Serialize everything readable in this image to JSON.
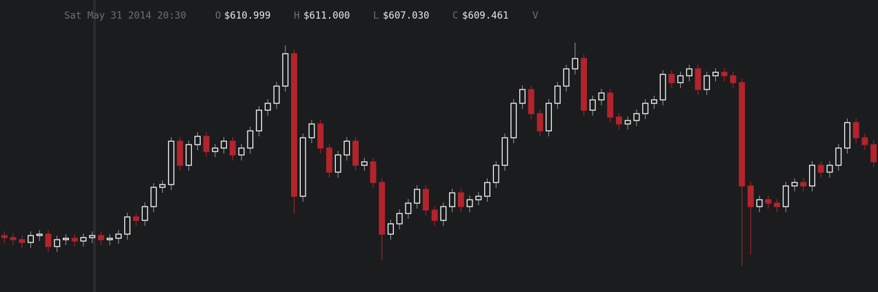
{
  "chart_data": {
    "type": "candlestick",
    "header": {
      "date": "Sat May 31 2014 20:30",
      "items": [
        {
          "key": "O",
          "value": "$610.999"
        },
        {
          "key": "H",
          "value": "$611.000"
        },
        {
          "key": "L",
          "value": "$607.030"
        },
        {
          "key": "C",
          "value": "$609.461"
        }
      ],
      "volume_key": "V"
    },
    "ylim": [
      588.5,
      684.5
    ],
    "up_color": "#ffffff",
    "down_color": "#b3242c",
    "open": [
      609,
      608.25,
      607.5,
      606.5,
      609,
      609.5,
      605,
      607.5,
      608,
      607,
      608.25,
      609,
      607.5,
      608,
      609.5,
      615.75,
      614.5,
      619.5,
      626.5,
      627.5,
      643.25,
      634.5,
      642,
      645,
      639.5,
      640.75,
      643.25,
      638.25,
      640.75,
      647,
      654.5,
      657,
      663.25,
      675,
      623.25,
      644.5,
      649.5,
      640.75,
      632,
      638.25,
      643.25,
      634.5,
      635.75,
      628.25,
      609.5,
      613.25,
      617,
      620.75,
      625.75,
      618.25,
      614.5,
      619.5,
      624.5,
      619.5,
      622,
      623.25,
      628.25,
      634.5,
      644.5,
      657,
      662,
      653.25,
      647,
      657,
      663.25,
      669.5,
      673.25,
      654.5,
      658.25,
      660.75,
      652,
      649.5,
      650.75,
      653.25,
      657,
      658.25,
      667.5,
      664.5,
      667,
      669.5,
      662,
      667,
      668.25,
      667,
      664.5,
      627,
      619.5,
      622,
      620.75,
      619.5,
      627,
      628.25,
      627,
      634.5,
      632,
      634.5,
      640.75,
      650,
      644.5,
      642
    ],
    "high": [
      610.5,
      609.75,
      609,
      610.5,
      611,
      611,
      609,
      609.5,
      609.5,
      609.75,
      610.5,
      610.5,
      609.5,
      611,
      617.25,
      617.25,
      621,
      628,
      629,
      644.75,
      644.75,
      643.5,
      646.5,
      646.5,
      642.25,
      644.75,
      644.75,
      642.25,
      648.5,
      656,
      658.5,
      664.75,
      678,
      676.5,
      646,
      651,
      651,
      642.25,
      639.75,
      644.75,
      644.75,
      637.25,
      637.25,
      629.75,
      614.75,
      618.5,
      622.25,
      627.25,
      627.25,
      619.75,
      621,
      626,
      626,
      623.5,
      624.75,
      629.75,
      636,
      646,
      658.5,
      663.5,
      663.5,
      654.75,
      658.5,
      664.75,
      671,
      679,
      674.75,
      659.75,
      662.25,
      662.25,
      653.5,
      652.25,
      654.75,
      658.5,
      659.75,
      669,
      669,
      668.5,
      671,
      671,
      668.5,
      669.75,
      669.75,
      668.5,
      666,
      628.5,
      623.5,
      623.5,
      622.25,
      628.5,
      629.75,
      629.75,
      636,
      636,
      636,
      642.25,
      651.5,
      651.5,
      646,
      643.5
    ],
    "low": [
      606.25,
      605.5,
      604.5,
      604.5,
      607,
      603,
      603,
      605.5,
      605,
      605,
      606.25,
      605.5,
      605.5,
      606,
      607.5,
      612.5,
      612.5,
      617.5,
      624.5,
      625.5,
      632.5,
      632.5,
      640,
      637.5,
      637.5,
      638.75,
      636.25,
      636.25,
      638.75,
      645,
      652.5,
      655,
      661.25,
      617,
      621.25,
      642.5,
      638.75,
      630,
      630,
      636.25,
      632.5,
      632.5,
      626.25,
      600,
      607.5,
      611.25,
      615,
      618.75,
      616.25,
      612.5,
      612.5,
      617.5,
      617.5,
      617.5,
      620,
      621.25,
      626.25,
      632.5,
      642.5,
      655,
      651.25,
      645,
      645,
      655,
      661.25,
      667.5,
      652.5,
      652.5,
      656.25,
      650,
      647.5,
      647.5,
      648.75,
      651.25,
      655,
      656.25,
      662.5,
      662.5,
      665,
      660,
      660,
      665,
      665,
      662.5,
      598,
      602,
      617.5,
      618.75,
      617.5,
      617.5,
      625,
      625,
      625,
      630,
      630,
      632.5,
      638.75,
      642.5,
      640,
      633.75
    ],
    "close": [
      608.25,
      607.5,
      606.5,
      609,
      609.5,
      605,
      607.5,
      608,
      607,
      608.25,
      609,
      607.5,
      608,
      609.5,
      615.75,
      614.5,
      619.5,
      626.5,
      627.5,
      643.25,
      634.5,
      642,
      645,
      639.5,
      640.75,
      643.25,
      638.25,
      640.75,
      647,
      654.5,
      657,
      663.25,
      675,
      623.25,
      644.5,
      649.5,
      640.75,
      632,
      638.25,
      643.25,
      634.5,
      635.75,
      628.25,
      609.5,
      613.25,
      617,
      620.75,
      625.75,
      618.25,
      614.5,
      619.5,
      624.5,
      619.5,
      622,
      623.25,
      628.25,
      634.5,
      644.5,
      657,
      662,
      653.25,
      647,
      657,
      663.25,
      669.5,
      673.25,
      654.5,
      658.25,
      660.75,
      652,
      649.5,
      650.75,
      653.25,
      657,
      658.25,
      667.5,
      664.5,
      667,
      669.5,
      662,
      667,
      668.25,
      667,
      664.5,
      627,
      619.5,
      622,
      620.75,
      619.5,
      627,
      628.25,
      627,
      634.5,
      632,
      634.5,
      640.75,
      650,
      644.5,
      642,
      635.75
    ]
  }
}
